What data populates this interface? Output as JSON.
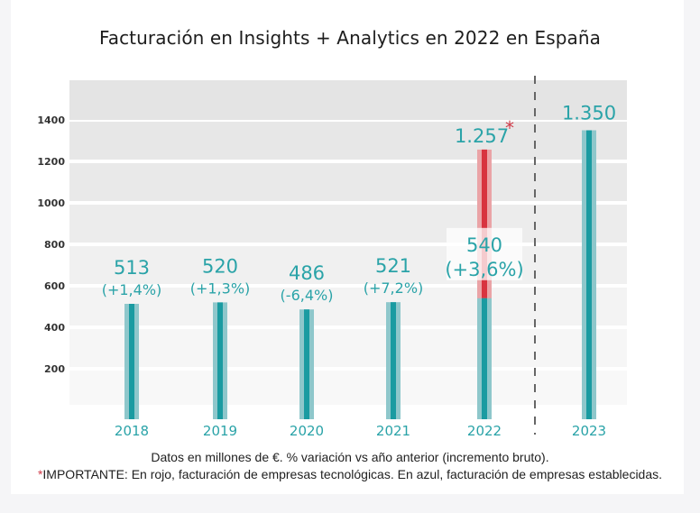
{
  "chart_data": {
    "type": "bar",
    "title": "Facturación en Insights + Analytics en 2022 en España",
    "xlabel": "",
    "ylabel": "",
    "ylim": [
      0,
      1550
    ],
    "yticks": [
      200,
      400,
      600,
      800,
      1000,
      1200,
      1400
    ],
    "ytick_labels": [
      "200",
      "400",
      "600",
      "800",
      "1000",
      "1200",
      "1400"
    ],
    "grid": true,
    "categories": [
      "2018",
      "2019",
      "2020",
      "2021",
      "2022",
      "2023"
    ],
    "series": [
      {
        "name": "Empresas establecidas",
        "color": "#1a9ba1",
        "color_light": "#8ec7cb",
        "values": [
          513,
          520,
          486,
          521,
          540,
          1350
        ]
      },
      {
        "name": "Empresas tecnológicas",
        "color": "#d8333f",
        "color_light": "#eaa3a6",
        "values": [
          null,
          null,
          null,
          null,
          1257,
          null
        ],
        "stacked_from_zero_total": true
      }
    ],
    "data_labels": [
      {
        "category": "2018",
        "value": "513",
        "change": "(+1,4%)"
      },
      {
        "category": "2019",
        "value": "520",
        "change": "(+1,3%)"
      },
      {
        "category": "2020",
        "value": "486",
        "change": "(-6,4%)"
      },
      {
        "category": "2021",
        "value": "521",
        "change": "(+7,2%)"
      },
      {
        "category": "2022",
        "value": "540",
        "change": "(+3,6%)",
        "total_label": "1.257",
        "total_marker": "*"
      },
      {
        "category": "2023",
        "value": "1.350",
        "change": ""
      }
    ],
    "separator_after_category": "2022",
    "colors": {
      "teal_text": "#2aa3a8",
      "red_accent": "#d03a48",
      "band_dark": "#e6e6e6",
      "band_light": "#f7f7f7"
    }
  },
  "footnotes": {
    "line1": "Datos en millones de €. % variación vs año anterior (incremento bruto).",
    "line2_marker": "*",
    "line2": "IMPORTANTE: En rojo, facturación de empresas tecnológicas. En azul, facturación de empresas establecidas."
  }
}
